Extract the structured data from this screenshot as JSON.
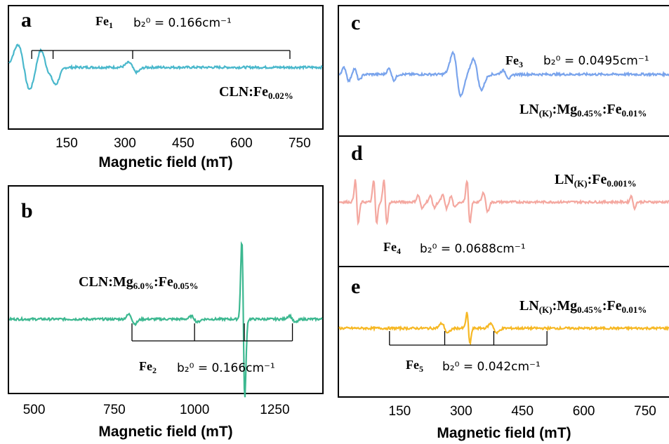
{
  "chart_data": [
    {
      "id": "a",
      "type": "line",
      "panel_label": "a",
      "sample": "CLN:Fe0.02%",
      "sample_parts": [
        {
          "t": "CLN:Fe",
          "sub": false
        },
        {
          "t": "0.02%",
          "sub": true
        }
      ],
      "fe_label": "Fe1",
      "fe_parts": [
        {
          "t": "Fe",
          "sub": false
        },
        {
          "t": "1",
          "sub": true
        }
      ],
      "b_label": "b₂⁰ = 0.166cm⁻¹",
      "xlabel": "Magnetic field (mT)",
      "xlim": [
        0,
        810
      ],
      "xticks": [
        150,
        300,
        450,
        600,
        750
      ],
      "color": "#4ab8cc",
      "stick_lines": [
        60,
        115,
        320,
        725
      ],
      "features": [
        {
          "x": 40,
          "amp": 55,
          "w": 12
        },
        {
          "x": 95,
          "amp": 45,
          "w": 10
        },
        {
          "x": 115,
          "amp": 28,
          "w": 8
        },
        {
          "x": 320,
          "amp": 12,
          "w": 8
        }
      ]
    },
    {
      "id": "b",
      "type": "line",
      "panel_label": "b",
      "sample": "CLN:Mg6.0%:Fe0.05%",
      "sample_parts": [
        {
          "t": "CLN:Mg",
          "sub": false
        },
        {
          "t": "6.0%",
          "sub": true
        },
        {
          "t": ":Fe",
          "sub": false
        },
        {
          "t": "0.05%",
          "sub": true
        }
      ],
      "fe_label": "Fe2",
      "fe_parts": [
        {
          "t": "Fe",
          "sub": false
        },
        {
          "t": "2",
          "sub": true
        }
      ],
      "b_label": "b₂⁰ = 0.166cm⁻¹",
      "xlabel": "Magnetic field (mT)",
      "xlim": [
        420,
        1400
      ],
      "xticks": [
        500,
        750,
        1000,
        1250
      ],
      "color": "#3cb890",
      "stick_lines": [
        805,
        1000,
        1155,
        1305
      ],
      "features": [
        {
          "x": 805,
          "amp": 10,
          "w": 6
        },
        {
          "x": 1000,
          "amp": 6,
          "w": 6
        },
        {
          "x": 1152,
          "amp": 165,
          "w": 3
        },
        {
          "x": 1305,
          "amp": 7,
          "w": 6
        }
      ]
    },
    {
      "id": "c",
      "type": "line",
      "panel_label": "c",
      "sample": "LN(K):Mg0.45%:Fe0.01%",
      "sample_parts": [
        {
          "t": "LN",
          "sub": false
        },
        {
          "t": "(K)",
          "sub": true
        },
        {
          "t": ":Mg",
          "sub": false
        },
        {
          "t": "0.45%",
          "sub": true
        },
        {
          "t": ":Fe",
          "sub": false
        },
        {
          "t": "0.01%",
          "sub": true
        }
      ],
      "fe_label": "Fe3",
      "fe_parts": [
        {
          "t": "Fe",
          "sub": false
        },
        {
          "t": "3",
          "sub": true
        }
      ],
      "b_label": "b₂⁰ = 0.0495cm⁻¹",
      "xlim": [
        0,
        810
      ],
      "color": "#7aa4ec",
      "stick_lines": [],
      "features": [
        {
          "x": 20,
          "amp": 14,
          "w": 5
        },
        {
          "x": 45,
          "amp": 12,
          "w": 5
        },
        {
          "x": 130,
          "amp": 12,
          "w": 5
        },
        {
          "x": 290,
          "amp": 45,
          "w": 8
        },
        {
          "x": 340,
          "amp": 32,
          "w": 8
        },
        {
          "x": 410,
          "amp": 8,
          "w": 6
        }
      ]
    },
    {
      "id": "d",
      "type": "line",
      "panel_label": "d",
      "sample": "LN(K):Fe0.001%",
      "sample_parts": [
        {
          "t": "LN",
          "sub": false
        },
        {
          "t": "(K)",
          "sub": true
        },
        {
          "t": ":Fe",
          "sub": false
        },
        {
          "t": "0.001%",
          "sub": true
        }
      ],
      "fe_label": "Fe4",
      "fe_parts": [
        {
          "t": "Fe",
          "sub": false
        },
        {
          "t": "4",
          "sub": true
        }
      ],
      "b_label": "b₂⁰ = 0.0688cm⁻¹",
      "xlim": [
        0,
        810
      ],
      "color": "#f4a8a0",
      "stick_lines": [],
      "features": [
        {
          "x": 45,
          "amp": 45,
          "w": 3
        },
        {
          "x": 90,
          "amp": 45,
          "w": 3
        },
        {
          "x": 115,
          "amp": 45,
          "w": 3
        },
        {
          "x": 200,
          "amp": 14,
          "w": 4
        },
        {
          "x": 230,
          "amp": 12,
          "w": 4
        },
        {
          "x": 260,
          "amp": 14,
          "w": 4
        },
        {
          "x": 280,
          "amp": 12,
          "w": 4
        },
        {
          "x": 318,
          "amp": 45,
          "w": 3
        },
        {
          "x": 360,
          "amp": 20,
          "w": 4
        },
        {
          "x": 720,
          "amp": 14,
          "w": 3
        }
      ]
    },
    {
      "id": "e",
      "type": "line",
      "panel_label": "e",
      "sample": "LN(K):Mg0.45%:Fe0.01%",
      "sample_parts": [
        {
          "t": "LN",
          "sub": false
        },
        {
          "t": "(K)",
          "sub": true
        },
        {
          "t": ":Mg",
          "sub": false
        },
        {
          "t": "0.45%",
          "sub": true
        },
        {
          "t": ":Fe",
          "sub": false
        },
        {
          "t": "0.01%",
          "sub": true
        }
      ],
      "fe_label": "Fe5",
      "fe_parts": [
        {
          "t": "Fe",
          "sub": false
        },
        {
          "t": "5",
          "sub": true
        }
      ],
      "b_label": "b₂⁰ = 0.042cm⁻¹",
      "xlabel": "Magnetic field (mT)",
      "xlim": [
        0,
        810
      ],
      "xticks": [
        150,
        300,
        450,
        600,
        750
      ],
      "color": "#f6b824",
      "stick_lines": [
        125,
        260,
        380,
        510
      ],
      "features": [
        {
          "x": 260,
          "amp": 10,
          "w": 6
        },
        {
          "x": 318,
          "amp": 32,
          "w": 3
        },
        {
          "x": 380,
          "amp": 10,
          "w": 6
        }
      ]
    }
  ]
}
